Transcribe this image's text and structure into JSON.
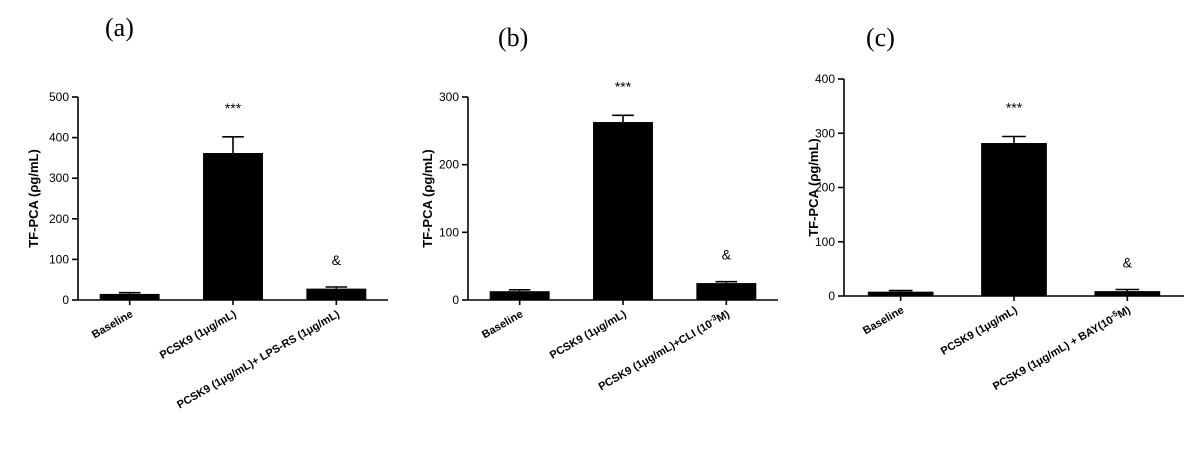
{
  "chart_data": [
    {
      "type": "bar",
      "panel_label": "(a)",
      "ylabel": "TF-PCA (ρg/mL)",
      "ylim": [
        0,
        500
      ],
      "yticks": [
        0,
        100,
        200,
        300,
        400,
        500
      ],
      "categories": [
        "Baseline",
        "PCSK9 (1μg/mL)",
        "PCSK9 (1μg/mL)+ LPS-RS (1μg/mL)"
      ],
      "values": [
        15,
        362,
        28
      ],
      "errors": [
        3,
        40,
        4
      ],
      "annotations": [
        "",
        "***",
        "&"
      ]
    },
    {
      "type": "bar",
      "panel_label": "(b)",
      "ylabel": "TF-PCA (ρg/mL)",
      "ylim": [
        0,
        300
      ],
      "yticks": [
        0,
        100,
        200,
        300
      ],
      "categories": [
        "Baseline",
        "PCSK9 (1μg/mL)",
        "PCSK9 (1μg/mL)+CLI (10⁻³M)"
      ],
      "values": [
        13,
        263,
        25
      ],
      "errors": [
        2,
        10,
        2
      ],
      "annotations": [
        "",
        "***",
        "&"
      ]
    },
    {
      "type": "bar",
      "panel_label": "(c)",
      "ylabel": "TF-PCA (ρg/mL)",
      "ylim": [
        0,
        400
      ],
      "yticks": [
        0,
        100,
        200,
        300,
        400
      ],
      "categories": [
        "Baseline",
        "PCSK9 (1μg/mL)",
        "PCSK9 (1μg/mL) + BAY(10⁻⁵M)"
      ],
      "values": [
        8,
        282,
        9
      ],
      "errors": [
        2,
        12,
        3
      ],
      "annotations": [
        "",
        "***",
        "&"
      ]
    }
  ]
}
